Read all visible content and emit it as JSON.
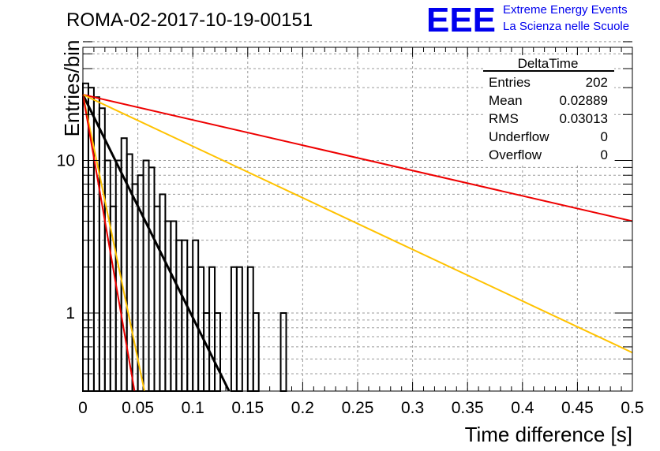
{
  "header": {
    "run_title": "ROMA-02-2017-10-19-00151",
    "logo_text": "EEE",
    "logo_line1": "Extreme Energy Events",
    "logo_line2": "La Scienza nelle Scuole",
    "logo_color": "#0000ee"
  },
  "stats": {
    "title": "DeltaTime",
    "rows": [
      {
        "label": "Entries",
        "value": "202"
      },
      {
        "label": "Mean",
        "value": "0.02889"
      },
      {
        "label": "RMS",
        "value": "0.03013"
      },
      {
        "label": "Underflow",
        "value": "0"
      },
      {
        "label": "Overflow",
        "value": "0"
      }
    ]
  },
  "chart_data": {
    "type": "histogram",
    "title": "ROMA-02-2017-10-19-00151",
    "xlabel": "Time difference [s]",
    "ylabel": "Entries/bin",
    "xlim": [
      0,
      0.5
    ],
    "ylim": [
      0.3,
      60
    ],
    "y_scale": "log",
    "grid": true,
    "x_ticks": [
      "0",
      "0.05",
      "0.1",
      "0.15",
      "0.2",
      "0.25",
      "0.3",
      "0.35",
      "0.4",
      "0.45",
      "0.5"
    ],
    "y_ticks": [
      "1",
      "10"
    ],
    "bin_width": 0.005,
    "bin_values": [
      32,
      30,
      26,
      22,
      10,
      5,
      10,
      14,
      11,
      7,
      8,
      10,
      9,
      5,
      6,
      4,
      4,
      3,
      3,
      2,
      3,
      2,
      1,
      2,
      1,
      0,
      0,
      2,
      2,
      0,
      2,
      1,
      0,
      0,
      0,
      0,
      1,
      0,
      0,
      0
    ],
    "fit_lines": [
      {
        "color": "#000000",
        "y0": 27,
        "y_at_end": 0.3,
        "x_end": 0.133
      },
      {
        "color": "#ee0000",
        "y0": 27,
        "y_at_end": 4.0,
        "x_end": 0.5
      },
      {
        "color": "#ffc200",
        "y0": 27,
        "y_at_end": 0.55,
        "x_end": 0.5
      },
      {
        "color": "#ffc200",
        "y0": 27,
        "y_at_end": 0.3,
        "x_end": 0.056
      },
      {
        "color": "#ee0000",
        "y0": 27,
        "y_at_end": 0.3,
        "x_end": 0.047
      }
    ]
  }
}
